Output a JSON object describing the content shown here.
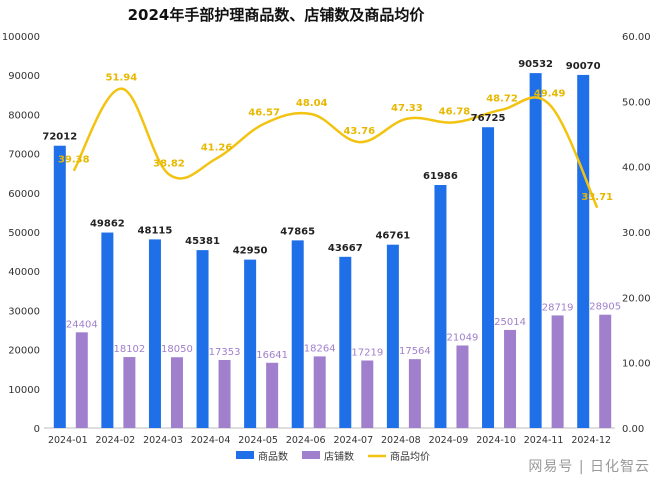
{
  "chart_data": {
    "type": "bar",
    "title": "2024年手部护理商品数、店铺数及商品均价",
    "categories": [
      "2024-01",
      "2024-02",
      "2024-03",
      "2024-04",
      "2024-05",
      "2024-06",
      "2024-07",
      "2024-08",
      "2024-09",
      "2024-10",
      "2024-11",
      "2024-12"
    ],
    "series": [
      {
        "name": "商品数",
        "type": "bar",
        "axis": "left",
        "color": "#1f6fe8",
        "values": [
          72012,
          49862,
          48115,
          45381,
          42950,
          47865,
          43667,
          46761,
          61986,
          76725,
          90532,
          90070
        ]
      },
      {
        "name": "店铺数",
        "type": "bar",
        "axis": "left",
        "color": "#a080cc",
        "values": [
          24404,
          18102,
          18050,
          17353,
          16641,
          18264,
          17219,
          17564,
          21049,
          25014,
          28719,
          28905
        ]
      },
      {
        "name": "商品均价",
        "type": "line",
        "axis": "right",
        "color": "#f2c311",
        "values": [
          39.38,
          51.94,
          38.82,
          41.26,
          46.57,
          48.04,
          43.76,
          47.33,
          46.78,
          48.72,
          49.49,
          33.71
        ]
      }
    ],
    "y_left": {
      "range": [
        0,
        100000
      ],
      "ticks": [
        "0",
        "10000",
        "20000",
        "30000",
        "40000",
        "50000",
        "60000",
        "70000",
        "80000",
        "90000",
        "100000"
      ]
    },
    "y_right": {
      "range": [
        0,
        60
      ],
      "ticks": [
        "0.00",
        "10.00",
        "20.00",
        "30.00",
        "40.00",
        "50.00",
        "60.00"
      ]
    },
    "grid": false,
    "legend_position": "bottom-center"
  },
  "watermark": "网易号 | 日化智云"
}
